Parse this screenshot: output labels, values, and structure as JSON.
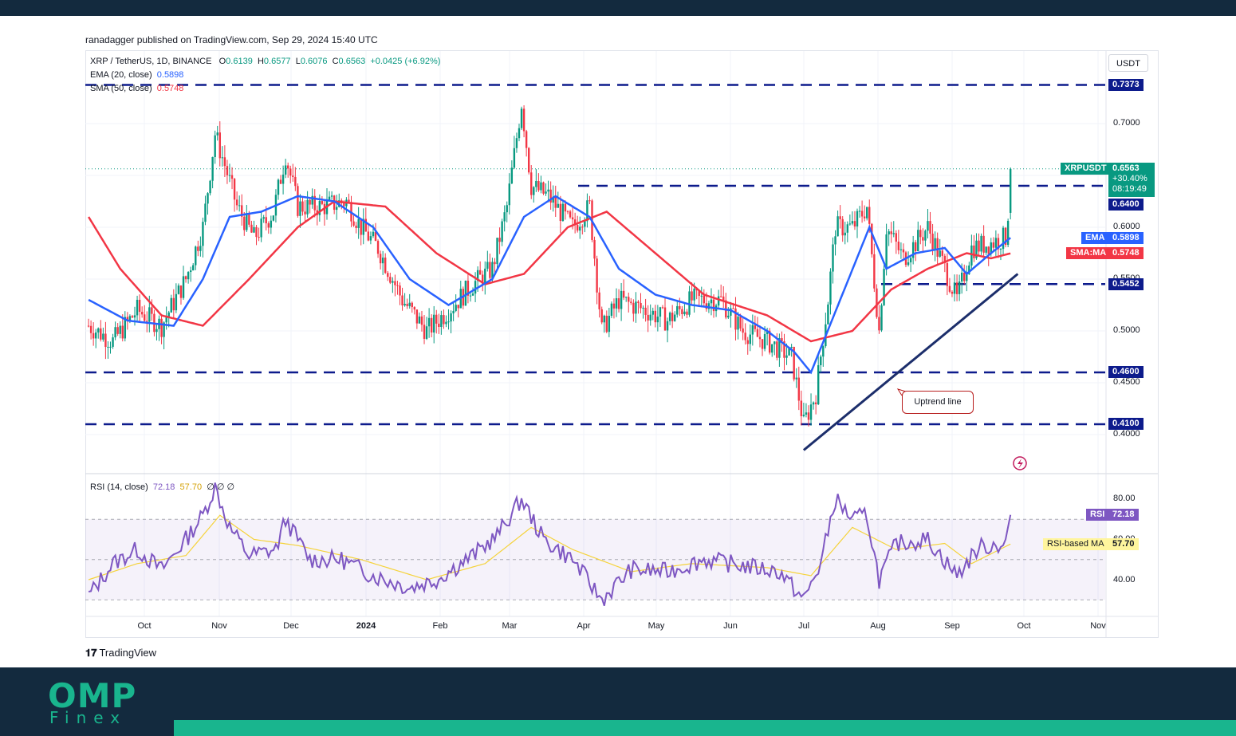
{
  "header": {
    "published_text": "ranadagger published on TradingView.com, Sep 29, 2024 15:40 UTC"
  },
  "legend": {
    "symbol": "XRP / TetherUS, 1D, BINANCE",
    "open_label": "O",
    "open": "0.6139",
    "high_label": "H",
    "high": "0.6577",
    "low_label": "L",
    "low": "0.6076",
    "close_label": "C",
    "close": "0.6563",
    "change": "+0.0425 (+6.92%)",
    "ema_label": "EMA (20, close)",
    "ema_value": "0.5898",
    "sma_label": "SMA (50, close)",
    "sma_value": "0.5748",
    "rsi_label": "RSI (14, close)",
    "rsi_value": "72.18",
    "rsi_ma_value": "57.70",
    "rsi_extra": "∅ ∅ ∅"
  },
  "currency": "USDT",
  "price_tags": {
    "symbol": "XRPUSDT",
    "price": "0.6563",
    "change_pct": "+30.40%",
    "countdown": "08:19:49",
    "ema_label": "EMA",
    "ema": "0.5898",
    "sma_label": "SMA:MA",
    "sma": "0.5748",
    "rsi_label": "RSI",
    "rsi": "72.18",
    "rsi_ma_label": "RSI-based MA",
    "rsi_ma": "57.70"
  },
  "levels": [
    "0.7373",
    "0.6400",
    "0.5452",
    "0.4600",
    "0.4100"
  ],
  "price_axis": [
    "0.7000",
    "0.6000",
    "0.5500",
    "0.5000",
    "0.4500",
    "0.4000"
  ],
  "rsi_axis": [
    "80.00",
    "60.00",
    "40.00"
  ],
  "annotation": "Uptrend line",
  "footer": {
    "brand": "TradingView"
  },
  "branding": {
    "logo_big": "OMP",
    "logo_small": "Finex"
  },
  "colors": {
    "up": "#089981",
    "down": "#f23645",
    "ema": "#2962ff",
    "sma": "#f23645",
    "level_line": "#0d1b8c",
    "rsi": "#7e57c2",
    "rsi_ma": "#f5d33b",
    "brand": "#19b58e",
    "dark": "#132a3e"
  },
  "chart_data": {
    "type": "candlestick",
    "title": "XRP / TetherUS, 1D, BINANCE",
    "x_tick_labels": [
      "Oct",
      "Nov",
      "Dec",
      "2024",
      "Feb",
      "Mar",
      "Apr",
      "May",
      "Jun",
      "Jul",
      "Aug",
      "Sep",
      "Oct",
      "Nov"
    ],
    "ylim": [
      0.38,
      0.75
    ],
    "horizontal_levels": [
      0.7373,
      0.64,
      0.5452,
      0.46,
      0.41
    ],
    "last": {
      "open": 0.6139,
      "high": 0.6577,
      "low": 0.6076,
      "close": 0.6563,
      "change": 0.0425,
      "change_pct": 6.92
    },
    "uptrend_line": {
      "from": {
        "date": "2024-07-05",
        "price": 0.385
      },
      "to": {
        "date": "2024-10-01",
        "price": 0.555
      }
    },
    "price_anchors": [
      [
        "2023-09-15",
        0.505
      ],
      [
        "2023-09-25",
        0.49
      ],
      [
        "2023-10-05",
        0.52
      ],
      [
        "2023-10-15",
        0.505
      ],
      [
        "2023-10-25",
        0.55
      ],
      [
        "2023-11-01",
        0.6
      ],
      [
        "2023-11-06",
        0.69
      ],
      [
        "2023-11-10",
        0.66
      ],
      [
        "2023-11-15",
        0.62
      ],
      [
        "2023-11-22",
        0.59
      ],
      [
        "2023-11-30",
        0.615
      ],
      [
        "2023-12-05",
        0.67
      ],
      [
        "2023-12-10",
        0.62
      ],
      [
        "2023-12-20",
        0.62
      ],
      [
        "2023-12-30",
        0.625
      ],
      [
        "2024-01-05",
        0.6
      ],
      [
        "2024-01-12",
        0.58
      ],
      [
        "2024-01-22",
        0.53
      ],
      [
        "2024-02-01",
        0.5
      ],
      [
        "2024-02-10",
        0.52
      ],
      [
        "2024-02-20",
        0.545
      ],
      [
        "2024-02-28",
        0.56
      ],
      [
        "2024-03-05",
        0.62
      ],
      [
        "2024-03-11",
        0.72
      ],
      [
        "2024-03-15",
        0.64
      ],
      [
        "2024-03-22",
        0.63
      ],
      [
        "2024-04-01",
        0.6
      ],
      [
        "2024-04-08",
        0.62
      ],
      [
        "2024-04-13",
        0.5
      ],
      [
        "2024-04-20",
        0.53
      ],
      [
        "2024-05-01",
        0.52
      ],
      [
        "2024-05-10",
        0.51
      ],
      [
        "2024-05-20",
        0.53
      ],
      [
        "2024-06-01",
        0.53
      ],
      [
        "2024-06-10",
        0.5
      ],
      [
        "2024-06-20",
        0.49
      ],
      [
        "2024-06-30",
        0.475
      ],
      [
        "2024-07-05",
        0.41
      ],
      [
        "2024-07-10",
        0.44
      ],
      [
        "2024-07-15",
        0.53
      ],
      [
        "2024-07-18",
        0.6
      ],
      [
        "2024-07-25",
        0.6
      ],
      [
        "2024-07-31",
        0.62
      ],
      [
        "2024-08-05",
        0.5
      ],
      [
        "2024-08-08",
        0.6
      ],
      [
        "2024-08-15",
        0.57
      ],
      [
        "2024-08-25",
        0.6
      ],
      [
        "2024-09-01",
        0.56
      ],
      [
        "2024-09-06",
        0.53
      ],
      [
        "2024-09-12",
        0.58
      ],
      [
        "2024-09-20",
        0.585
      ],
      [
        "2024-09-26",
        0.59
      ],
      [
        "2024-09-27",
        0.6139
      ],
      [
        "2024-09-28",
        0.6563
      ]
    ],
    "ema20_anchors": [
      [
        "2023-09-15",
        0.53
      ],
      [
        "2023-10-01",
        0.51
      ],
      [
        "2023-10-20",
        0.505
      ],
      [
        "2023-11-01",
        0.55
      ],
      [
        "2023-11-12",
        0.61
      ],
      [
        "2023-11-25",
        0.615
      ],
      [
        "2023-12-10",
        0.63
      ],
      [
        "2023-12-25",
        0.625
      ],
      [
        "2024-01-10",
        0.6
      ],
      [
        "2024-01-25",
        0.55
      ],
      [
        "2024-02-10",
        0.525
      ],
      [
        "2024-02-28",
        0.55
      ],
      [
        "2024-03-12",
        0.61
      ],
      [
        "2024-03-25",
        0.63
      ],
      [
        "2024-04-08",
        0.61
      ],
      [
        "2024-04-20",
        0.56
      ],
      [
        "2024-05-05",
        0.535
      ],
      [
        "2024-05-20",
        0.525
      ],
      [
        "2024-06-05",
        0.52
      ],
      [
        "2024-06-20",
        0.5
      ],
      [
        "2024-07-01",
        0.48
      ],
      [
        "2024-07-08",
        0.46
      ],
      [
        "2024-07-20",
        0.53
      ],
      [
        "2024-08-01",
        0.6
      ],
      [
        "2024-08-08",
        0.56
      ],
      [
        "2024-08-20",
        0.575
      ],
      [
        "2024-09-01",
        0.58
      ],
      [
        "2024-09-10",
        0.555
      ],
      [
        "2024-09-20",
        0.575
      ],
      [
        "2024-09-28",
        0.5898
      ]
    ],
    "sma50_anchors": [
      [
        "2023-09-15",
        0.61
      ],
      [
        "2023-09-28",
        0.56
      ],
      [
        "2023-10-15",
        0.515
      ],
      [
        "2023-11-01",
        0.505
      ],
      [
        "2023-11-20",
        0.55
      ],
      [
        "2023-12-10",
        0.6
      ],
      [
        "2023-12-25",
        0.625
      ],
      [
        "2024-01-15",
        0.62
      ],
      [
        "2024-02-05",
        0.575
      ],
      [
        "2024-02-25",
        0.545
      ],
      [
        "2024-03-12",
        0.555
      ],
      [
        "2024-03-30",
        0.6
      ],
      [
        "2024-04-15",
        0.615
      ],
      [
        "2024-05-05",
        0.575
      ],
      [
        "2024-05-25",
        0.535
      ],
      [
        "2024-06-20",
        0.515
      ],
      [
        "2024-07-08",
        0.49
      ],
      [
        "2024-07-25",
        0.5
      ],
      [
        "2024-08-10",
        0.54
      ],
      [
        "2024-08-25",
        0.56
      ],
      [
        "2024-09-10",
        0.575
      ],
      [
        "2024-09-20",
        0.57
      ],
      [
        "2024-09-28",
        0.5748
      ]
    ],
    "rsi_anchors": [
      [
        "2023-09-15",
        32
      ],
      [
        "2023-09-25",
        48
      ],
      [
        "2023-10-05",
        55
      ],
      [
        "2023-10-15",
        45
      ],
      [
        "2023-10-25",
        60
      ],
      [
        "2023-11-01",
        72
      ],
      [
        "2023-11-06",
        86
      ],
      [
        "2023-11-12",
        66
      ],
      [
        "2023-11-20",
        52
      ],
      [
        "2023-12-01",
        55
      ],
      [
        "2023-12-05",
        70
      ],
      [
        "2023-12-15",
        50
      ],
      [
        "2023-12-28",
        50
      ],
      [
        "2024-01-10",
        42
      ],
      [
        "2024-01-25",
        36
      ],
      [
        "2024-02-05",
        40
      ],
      [
        "2024-02-20",
        52
      ],
      [
        "2024-03-01",
        62
      ],
      [
        "2024-03-11",
        80
      ],
      [
        "2024-03-20",
        60
      ],
      [
        "2024-04-01",
        50
      ],
      [
        "2024-04-13",
        30
      ],
      [
        "2024-04-25",
        45
      ],
      [
        "2024-05-10",
        44
      ],
      [
        "2024-05-25",
        50
      ],
      [
        "2024-06-10",
        47
      ],
      [
        "2024-06-25",
        44
      ],
      [
        "2024-07-05",
        30
      ],
      [
        "2024-07-12",
        48
      ],
      [
        "2024-07-18",
        80
      ],
      [
        "2024-07-25",
        70
      ],
      [
        "2024-07-31",
        72
      ],
      [
        "2024-08-05",
        40
      ],
      [
        "2024-08-12",
        58
      ],
      [
        "2024-08-25",
        60
      ],
      [
        "2024-09-06",
        42
      ],
      [
        "2024-09-15",
        56
      ],
      [
        "2024-09-26",
        58
      ],
      [
        "2024-09-28",
        72.18
      ]
    ],
    "rsi_ma_anchors": [
      [
        "2023-09-15",
        40
      ],
      [
        "2023-10-05",
        48
      ],
      [
        "2023-10-25",
        52
      ],
      [
        "2023-11-08",
        72
      ],
      [
        "2023-11-22",
        60
      ],
      [
        "2023-12-10",
        57
      ],
      [
        "2024-01-05",
        50
      ],
      [
        "2024-02-01",
        40
      ],
      [
        "2024-02-25",
        48
      ],
      [
        "2024-03-15",
        66
      ],
      [
        "2024-04-01",
        55
      ],
      [
        "2024-04-25",
        44
      ],
      [
        "2024-05-20",
        48
      ],
      [
        "2024-06-20",
        46
      ],
      [
        "2024-07-08",
        42
      ],
      [
        "2024-07-25",
        66
      ],
      [
        "2024-08-12",
        55
      ],
      [
        "2024-09-01",
        58
      ],
      [
        "2024-09-12",
        48
      ],
      [
        "2024-09-28",
        57.7
      ]
    ],
    "rsi_axis": {
      "ylim": [
        25,
        95
      ],
      "band": [
        30,
        70
      ]
    }
  }
}
